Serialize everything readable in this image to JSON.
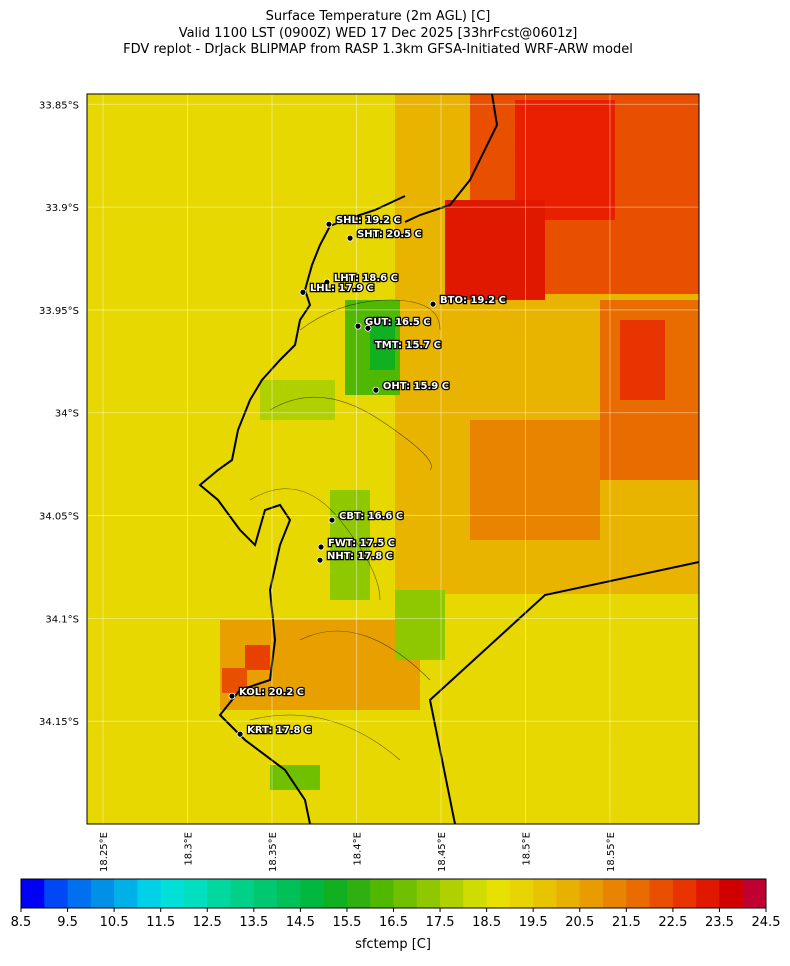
{
  "title": [
    "Surface Temperature (2m AGL) [C]",
    "Valid 1100 LST (0900Z) WED 17 Dec 2025 [33hrFcst@0601z]",
    "FDV replot - DrJack BLIPMAP from RASP 1.3km GFSA-Initiated WRF-ARW model"
  ],
  "map": {
    "lonlim": [
      18.2405,
      18.6027
    ],
    "latlim": [
      -33.845,
      -34.2
    ],
    "lonticks": [
      {
        "value": 18.25,
        "label": "18.25°E"
      },
      {
        "value": 18.3,
        "label": "18.3°E"
      },
      {
        "value": 18.35,
        "label": "18.35°E"
      },
      {
        "value": 18.4,
        "label": "18.4°E"
      },
      {
        "value": 18.45,
        "label": "18.45°E"
      },
      {
        "value": 18.5,
        "label": "18.5°E"
      },
      {
        "value": 18.55,
        "label": "18.55°E"
      }
    ],
    "latticks": [
      {
        "value": -33.85,
        "label": "33.85°S"
      },
      {
        "value": -33.9,
        "label": "33.9°S"
      },
      {
        "value": -33.95,
        "label": "33.95°S"
      },
      {
        "value": -34.0,
        "label": "34°S"
      },
      {
        "value": -34.05,
        "label": "34.05°S"
      },
      {
        "value": -34.1,
        "label": "34.1°S"
      },
      {
        "value": -34.15,
        "label": "34.15°S"
      }
    ],
    "stations": [
      {
        "label": "SHL: 19.2 C",
        "lon": 18.3837,
        "lat": -33.9083
      },
      {
        "label": "SHT: 20.5 C",
        "lon": 18.3962,
        "lat": -33.9151
      },
      {
        "label": "LHT: 18.6 C",
        "lon": 18.3825,
        "lat": -33.9365
      },
      {
        "label": "LHL: 17.9 C",
        "lon": 18.3683,
        "lat": -33.9414
      },
      {
        "label": "BTO: 19.2 C",
        "lon": 18.4453,
        "lat": -33.9472
      },
      {
        "label": "GUT: 16.5 C",
        "lon": 18.4009,
        "lat": -33.9579
      },
      {
        "label": "TMT: 15.7 C",
        "lon": 18.4068,
        "lat": -33.9589
      },
      {
        "label": "OHT: 15.9 C",
        "lon": 18.4115,
        "lat": -33.989
      },
      {
        "label": "CBT: 16.6 C",
        "lon": 18.3855,
        "lat": -34.0522
      },
      {
        "label": "FWT: 17.5 C",
        "lon": 18.379,
        "lat": -34.0653
      },
      {
        "label": "NHT: 17.8 C",
        "lon": 18.3784,
        "lat": -34.0717
      },
      {
        "label": "KOL: 20.2 C",
        "lon": 18.3263,
        "lat": -34.1378
      },
      {
        "label": "KRT: 17.8 C",
        "lon": 18.3311,
        "lat": -34.1563
      }
    ]
  },
  "colorbar": {
    "label": "sfctemp [C]",
    "lim": [
      8.5,
      24.5
    ],
    "ticks": [
      8.5,
      9.5,
      10.5,
      11.5,
      12.5,
      13.5,
      14.5,
      15.5,
      16.5,
      17.5,
      18.5,
      19.5,
      20.5,
      21.5,
      22.5,
      23.5,
      24.5
    ],
    "colors": [
      "#0000f5",
      "#0048f5",
      "#0070f0",
      "#0090e8",
      "#00b0e8",
      "#00d0e8",
      "#00e0d8",
      "#00e0c0",
      "#00d8a0",
      "#00d088",
      "#00c870",
      "#00c058",
      "#00b840",
      "#10b020",
      "#30b010",
      "#50b800",
      "#70c000",
      "#90c800",
      "#b0d000",
      "#d0dc00",
      "#e8e000",
      "#e8d400",
      "#e8c400",
      "#e8b000",
      "#e89c00",
      "#e88400",
      "#e86c00",
      "#e85000",
      "#e83400",
      "#e01800",
      "#d00000",
      "#c00030"
    ]
  }
}
